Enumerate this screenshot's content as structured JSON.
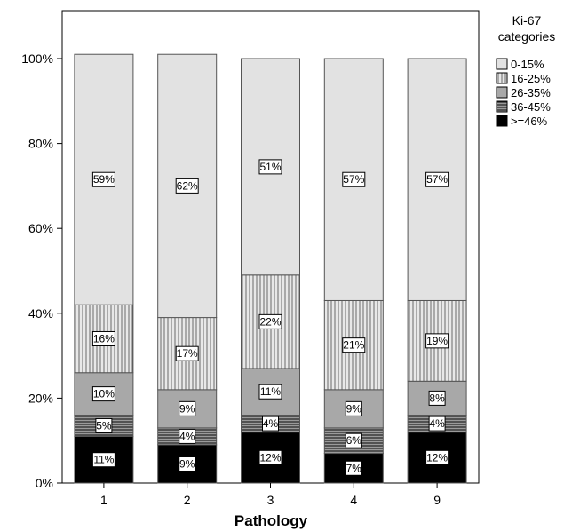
{
  "chart_data": {
    "type": "bar",
    "stacked": true,
    "categories": [
      "1",
      "2",
      "3",
      "4",
      "9"
    ],
    "xlabel": "Pathology",
    "ylabel": "",
    "ylim": [
      0,
      100
    ],
    "y_ticks": [
      "0%",
      "20%",
      "40%",
      "60%",
      "80%",
      "100%"
    ],
    "legend_title": [
      "Ki-67",
      "categories"
    ],
    "legend_position": "top-right",
    "series": [
      {
        "name": ">=46%",
        "values": [
          11,
          9,
          12,
          7,
          12
        ],
        "color": "#000000",
        "pattern": "solid"
      },
      {
        "name": "36-45%",
        "values": [
          5,
          4,
          4,
          6,
          4
        ],
        "color": "#505050",
        "pattern": "horizontal-lines"
      },
      {
        "name": "26-35%",
        "values": [
          10,
          9,
          11,
          9,
          8
        ],
        "color": "#a8a8a8",
        "pattern": "solid"
      },
      {
        "name": "16-25%",
        "values": [
          16,
          17,
          22,
          21,
          19
        ],
        "color": "#e2e2e2",
        "pattern": "vertical-lines"
      },
      {
        "name": "0-15%",
        "values": [
          59,
          62,
          51,
          57,
          57
        ],
        "color": "#e2e2e2",
        "pattern": "solid"
      }
    ]
  }
}
